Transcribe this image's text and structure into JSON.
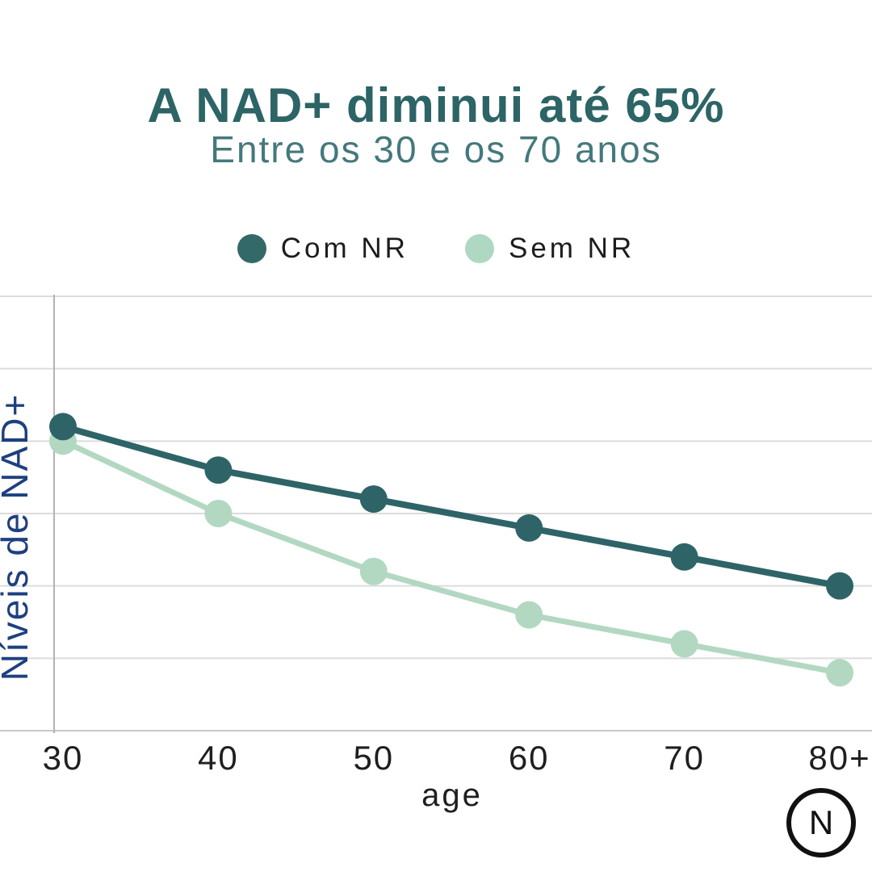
{
  "page": {
    "background": "#ffffff"
  },
  "header": {
    "title": "A NAD+ diminui até 65%",
    "subtitle": "Entre os 30 e os 70 anos",
    "title_color": "#2d6466",
    "subtitle_color": "#44797c"
  },
  "legend": {
    "items": [
      {
        "label": "Com NR",
        "color": "#346969"
      },
      {
        "label": "Sem NR",
        "color": "#aed8c1"
      }
    ]
  },
  "chart_data": {
    "type": "line",
    "x": [
      "30",
      "40",
      "50",
      "60",
      "70",
      "80+"
    ],
    "xlabel": "age",
    "ylabel": "Níveis de NAD+",
    "ylim": [
      0,
      150
    ],
    "grid_step": 25,
    "grid": true,
    "legend_position": "top",
    "series": [
      {
        "name": "Com NR",
        "color": "#2e6467",
        "values": [
          105,
          90,
          80,
          70,
          60,
          50
        ]
      },
      {
        "name": "Sem NR",
        "color": "#b2d8c2",
        "values": [
          100,
          75,
          55,
          40,
          30,
          20
        ]
      }
    ],
    "colors": {
      "gridline": "#dcdcdc",
      "baseline": "#c9c9c9",
      "y_axis_line": "#b3b3b3",
      "tick_label": "#1f1f1f",
      "xlabel": "#1f1f1f",
      "ylabel": "#1e4080"
    }
  },
  "footer_logo": {
    "letter": "N"
  }
}
